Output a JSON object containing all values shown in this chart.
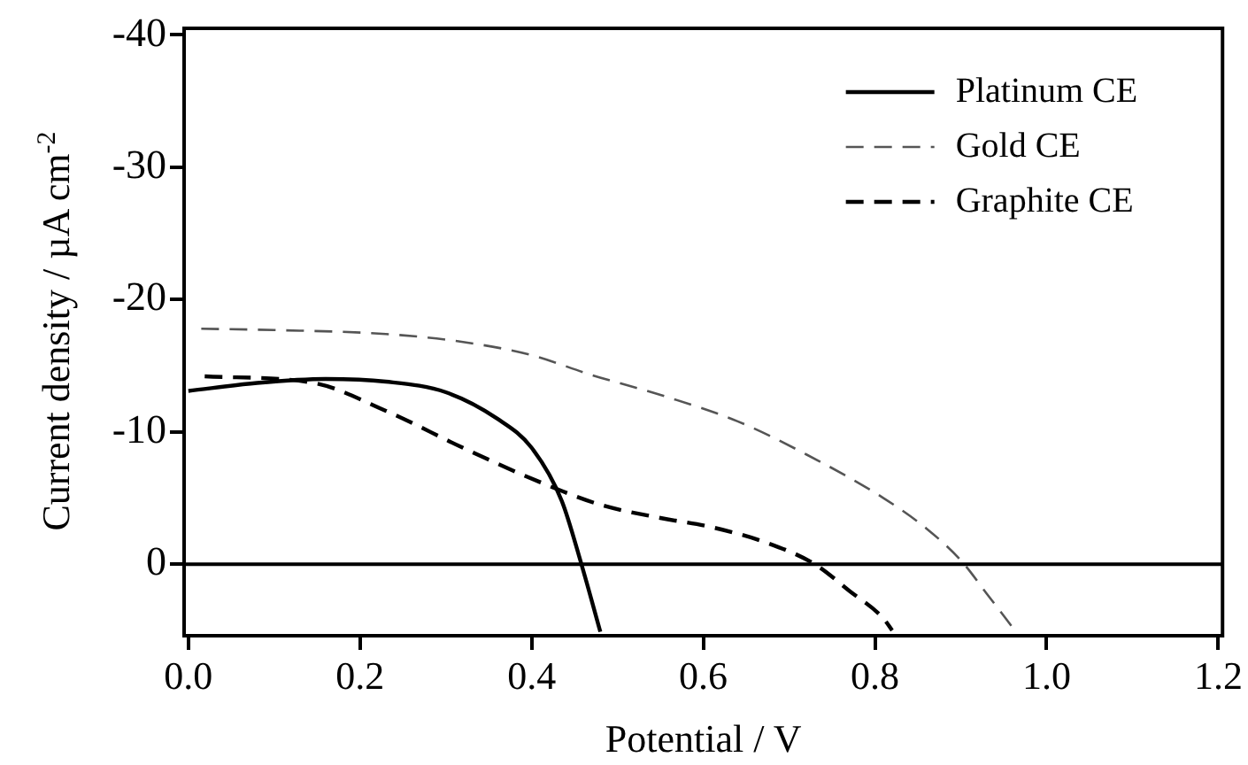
{
  "chart_data": {
    "type": "line",
    "xlabel": "Potential / V",
    "ylabel": "Current density / µA cm$^{-2}$",
    "xlim": [
      -0.005,
      1.205
    ],
    "xticks": [
      {
        "value": 0,
        "label": "0.0"
      },
      0.2,
      0.4,
      0.6,
      0.8,
      {
        "value": 1,
        "label": "1.0"
      },
      1.2
    ],
    "ylim": [
      5.4,
      -40.5
    ],
    "yticks": [
      -40,
      -30,
      -20,
      -10,
      0
    ],
    "legend": "top right",
    "grid": false,
    "marker": "none",
    "ref_lines": [
      {
        "axis": "y",
        "value": 0,
        "color": "#000000",
        "line_style": "solid"
      }
    ],
    "series": [
      {
        "name": "Platinum CE",
        "color": "#000000",
        "line_style": "solid",
        "x": [
          0,
          0.08,
          0.16,
          0.23,
          0.3,
          0.36,
          0.4,
          0.435,
          0.458,
          0.48
        ],
        "values": [
          -13.1,
          -13.7,
          -14.0,
          -13.8,
          -13.0,
          -11.0,
          -8.8,
          -4.8,
          0,
          5.1
        ]
      },
      {
        "name": "Gold CE",
        "color": "#555555",
        "line_style": "dashed",
        "x": [
          0.015,
          0.1,
          0.23,
          0.32,
          0.4,
          0.47,
          0.55,
          0.64,
          0.72,
          0.81,
          0.86,
          0.9,
          0.93,
          0.963
        ],
        "values": [
          -17.8,
          -17.7,
          -17.4,
          -16.8,
          -15.8,
          -14.3,
          -12.8,
          -10.8,
          -8.3,
          -5.0,
          -2.7,
          -0.3,
          2.2,
          5.0
        ]
      },
      {
        "name": "Graphite CE",
        "color": "#000000",
        "line_style": "dashed",
        "x": [
          0.019,
          0.146,
          0.23,
          0.32,
          0.41,
          0.48,
          0.55,
          0.61,
          0.675,
          0.73,
          0.77,
          0.81,
          0.82
        ],
        "values": [
          -14.2,
          -13.7,
          -11.6,
          -8.8,
          -6.2,
          -4.5,
          -3.5,
          -2.8,
          -1.6,
          0,
          2.0,
          4.1,
          5.0
        ]
      }
    ]
  }
}
